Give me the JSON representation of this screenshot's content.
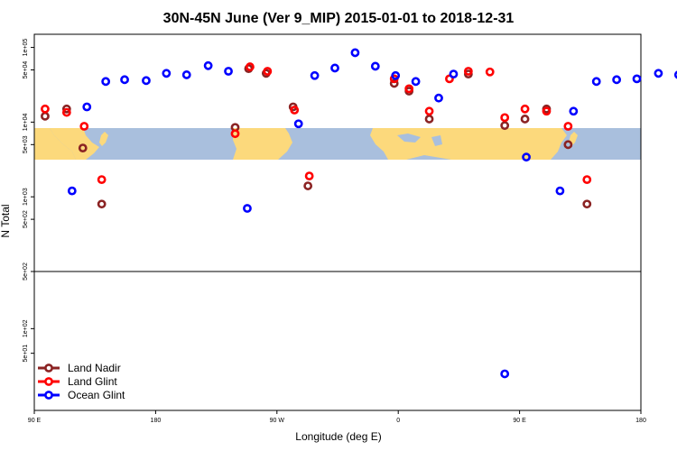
{
  "chart_data": {
    "type": "scatter",
    "title": "30N-45N June (Ver 9_MIP)   2015-01-01 to 2018-12-31",
    "xlabel": "Longitude (deg E)",
    "ylabel": "N Total",
    "x_ticks": [
      {
        "value": 90,
        "label": "90 E"
      },
      {
        "value": 180,
        "label": "180"
      },
      {
        "value": 270,
        "label": "90 W"
      },
      {
        "value": 360,
        "label": "0"
      },
      {
        "value": 450,
        "label": "90 E"
      },
      {
        "value": 540,
        "label": "180"
      }
    ],
    "upper_panel": {
      "y_scale": "log",
      "ylim": [
        100,
        150000
      ],
      "y_ticks": [
        {
          "value": 100000,
          "label": "1e+05"
        },
        {
          "value": 50000,
          "label": "5e+04"
        },
        {
          "value": 10000,
          "label": "1e+04"
        },
        {
          "value": 5000,
          "label": "5e+03"
        },
        {
          "value": 1000,
          "label": "1e+03"
        },
        {
          "value": 500,
          "label": "5e+02"
        }
      ]
    },
    "lower_panel": {
      "y_scale": "log",
      "ylim": [
        10,
        500
      ],
      "y_ticks": [
        {
          "value": 500,
          "label": "5e+02"
        },
        {
          "value": 100,
          "label": "1e+02"
        },
        {
          "value": 50,
          "label": "5e+01"
        }
      ]
    },
    "legend_position": "bottom-left",
    "series": [
      {
        "name": "Land Nadir",
        "color": "#8b2323",
        "points": [
          [
            98,
            12000
          ],
          [
            114,
            15000
          ],
          [
            126,
            4500
          ],
          [
            140,
            800
          ],
          [
            239,
            8500
          ],
          [
            249,
            52000
          ],
          [
            262,
            45000
          ],
          [
            282,
            16000
          ],
          [
            293,
            1400
          ],
          [
            357,
            33000
          ],
          [
            368,
            26000
          ],
          [
            383,
            11000
          ],
          [
            412,
            44000
          ],
          [
            439,
            9000
          ],
          [
            454,
            11000
          ],
          [
            470,
            15000
          ],
          [
            486,
            5000
          ],
          [
            500,
            800
          ]
        ]
      },
      {
        "name": "Land Glint",
        "color": "#ff0000",
        "points": [
          [
            98,
            15000
          ],
          [
            114,
            13500
          ],
          [
            127,
            8800
          ],
          [
            140,
            1700
          ],
          [
            239,
            7000
          ],
          [
            250,
            55000
          ],
          [
            263,
            48000
          ],
          [
            283,
            14500
          ],
          [
            294,
            1900
          ],
          [
            357,
            38000
          ],
          [
            368,
            28000
          ],
          [
            383,
            14000
          ],
          [
            398,
            38000
          ],
          [
            412,
            48000
          ],
          [
            428,
            47000
          ],
          [
            439,
            11500
          ],
          [
            454,
            15000
          ],
          [
            470,
            14000
          ],
          [
            486,
            8800
          ],
          [
            500,
            1700
          ]
        ]
      },
      {
        "name": "Ocean Glint",
        "color": "#0000ff",
        "points": [
          [
            118,
            1200
          ],
          [
            129,
            16000
          ],
          [
            143,
            35000
          ],
          [
            157,
            37000
          ],
          [
            173,
            36000
          ],
          [
            188,
            45000
          ],
          [
            203,
            43000
          ],
          [
            219,
            57000
          ],
          [
            234,
            48000
          ],
          [
            248,
            700
          ],
          [
            286,
            9500
          ],
          [
            298,
            42000
          ],
          [
            313,
            53000
          ],
          [
            328,
            85000
          ],
          [
            343,
            56000
          ],
          [
            358,
            42000
          ],
          [
            373,
            35000
          ],
          [
            390,
            21000
          ],
          [
            401,
            44000
          ],
          [
            439,
            28
          ],
          [
            455,
            3400
          ],
          [
            480,
            1200
          ],
          [
            490,
            14000
          ],
          [
            507,
            35000
          ],
          [
            522,
            37000
          ],
          [
            537,
            38000
          ],
          [
            553,
            45000
          ],
          [
            568,
            43000
          ],
          [
            583,
            57000
          ]
        ]
      }
    ]
  }
}
